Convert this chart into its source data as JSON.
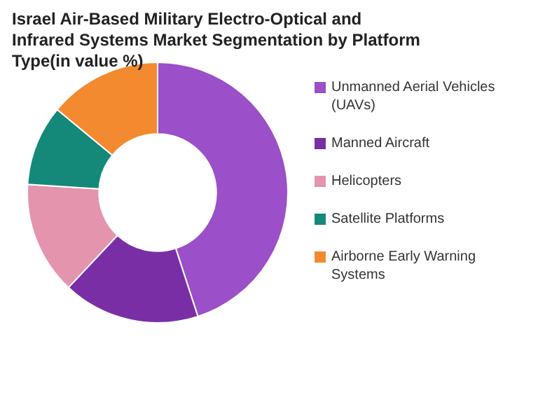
{
  "chart_data": {
    "type": "donut",
    "title": "Israel Air-Based Military Electro-Optical and Infrared Systems Market Segmentation by Platform Type(in value %)",
    "categories": [
      "Unmanned Aerial Vehicles (UAVs)",
      "Manned Aircraft",
      "Helicopters",
      "Satellite Platforms",
      "Airborne Early Warning Systems"
    ],
    "values": [
      45,
      17,
      14,
      10,
      14
    ],
    "colors": [
      "#9b4fc8",
      "#7a2ea6",
      "#e494ad",
      "#14897a",
      "#f38a2f"
    ],
    "legend": "right"
  }
}
